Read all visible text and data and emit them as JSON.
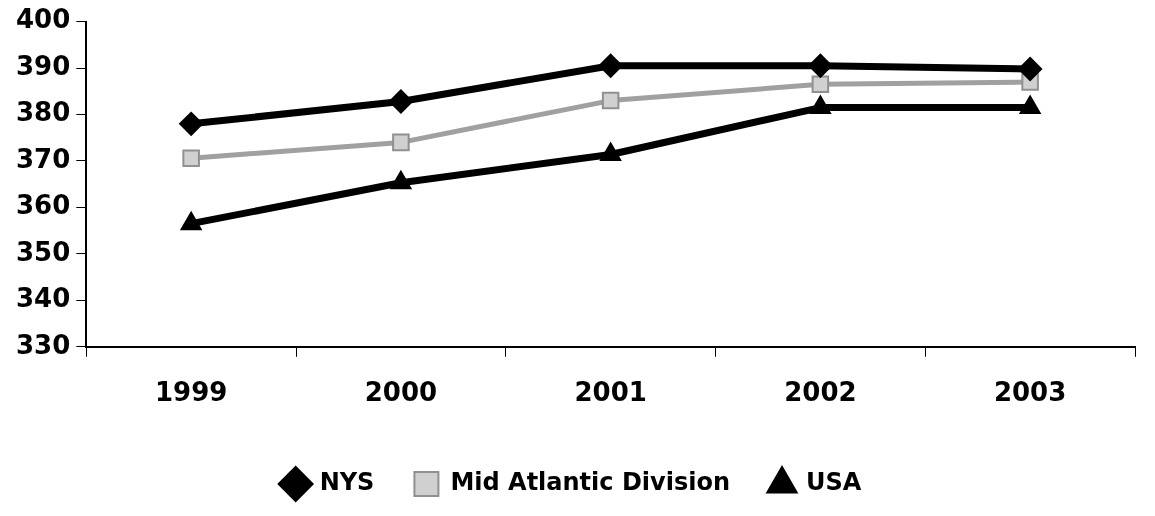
{
  "chart_data": {
    "type": "line",
    "categories": [
      "1999",
      "2000",
      "2001",
      "2002",
      "2003"
    ],
    "series": [
      {
        "name": "NYS",
        "color": "#000000",
        "marker": "diamond",
        "values": [
          378,
          382.8,
          390.5,
          390.5,
          389.8
        ]
      },
      {
        "name": "Mid Atlantic Division",
        "color": "#a0a0a0",
        "marker": "square",
        "values": [
          370.6,
          374,
          383,
          386.5,
          387
        ]
      },
      {
        "name": "USA",
        "color": "#000000",
        "marker": "triangle",
        "values": [
          356.5,
          365.3,
          371.4,
          381.5,
          381.5
        ]
      }
    ],
    "ylim": [
      330,
      400
    ],
    "yticks": [
      330,
      340,
      350,
      360,
      370,
      380,
      390,
      400
    ],
    "grid": false,
    "legend": "bottom",
    "line_style": "solid"
  }
}
